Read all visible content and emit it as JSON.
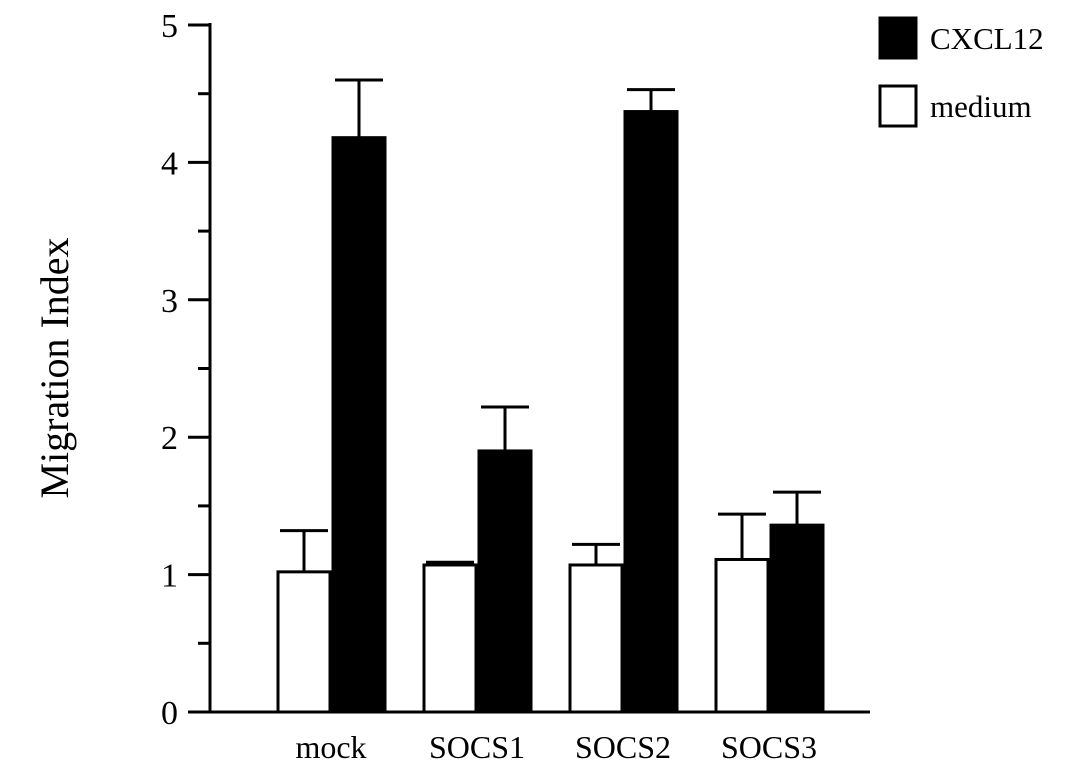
{
  "chart_data": {
    "type": "bar",
    "title": "",
    "xlabel": "",
    "ylabel": "Migration Index",
    "ylim": [
      0,
      5
    ],
    "yticks": [
      0,
      1,
      2,
      3,
      4,
      5
    ],
    "grid": false,
    "legend_position": "top-right",
    "categories": [
      "mock",
      "SOCS1",
      "SOCS2",
      "SOCS3"
    ],
    "series": [
      {
        "name": "medium",
        "color": "#ffffff",
        "values": [
          1.02,
          1.07,
          1.07,
          1.11
        ],
        "errors": [
          0.3,
          0.02,
          0.15,
          0.33
        ]
      },
      {
        "name": "CXCL12",
        "color": "#000000",
        "values": [
          4.18,
          1.9,
          4.37,
          1.36
        ],
        "errors": [
          0.42,
          0.32,
          0.16,
          0.24
        ]
      }
    ]
  }
}
